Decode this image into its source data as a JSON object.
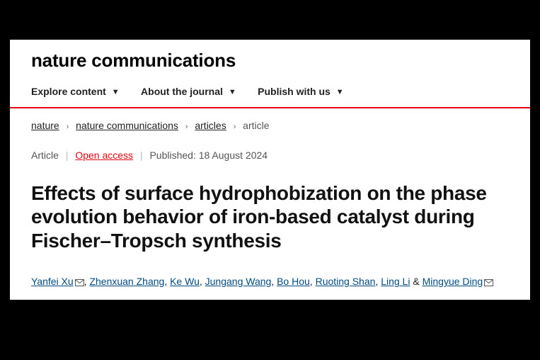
{
  "masthead": {
    "logo": "nature communications"
  },
  "topnav": {
    "items": [
      {
        "label": "Explore content"
      },
      {
        "label": "About the journal"
      },
      {
        "label": "Publish with us"
      }
    ]
  },
  "breadcrumb": {
    "items": [
      {
        "label": "nature",
        "link": true
      },
      {
        "label": "nature communications",
        "link": true
      },
      {
        "label": "articles",
        "link": true
      },
      {
        "label": "article",
        "link": false
      }
    ],
    "separator_glyph": "›"
  },
  "meta": {
    "type_label": "Article",
    "open_access_label": "Open access",
    "published_label": "Published: 18 August 2024"
  },
  "article": {
    "title": "Effects of surface hydrophobization on the phase evolution behavior of iron-based catalyst during Fischer–Tropsch synthesis"
  },
  "authors": [
    {
      "name": "Yanfei Xu",
      "corresponding": true
    },
    {
      "name": "Zhenxuan Zhang",
      "corresponding": false
    },
    {
      "name": "Ke Wu",
      "corresponding": false
    },
    {
      "name": "Jungang Wang",
      "corresponding": false
    },
    {
      "name": "Bo Hou",
      "corresponding": false
    },
    {
      "name": "Ruoting Shan",
      "corresponding": false
    },
    {
      "name": "Ling Li",
      "corresponding": false
    },
    {
      "name": "Mingyue Ding",
      "corresponding": true
    }
  ],
  "colors": {
    "background_outer": "#000000",
    "background_page": "#ffffff",
    "accent_red": "#e30613",
    "link_blue": "#004b83",
    "text_dark": "#111111",
    "text_mid": "#555555"
  }
}
